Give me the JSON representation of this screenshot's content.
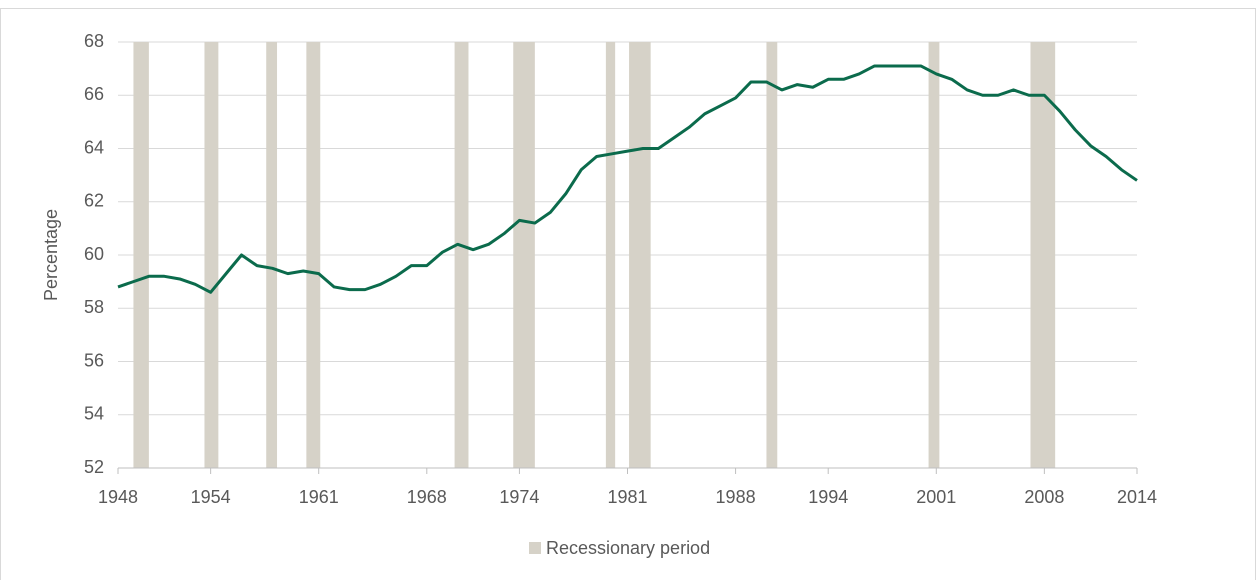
{
  "chart_data": {
    "type": "line",
    "y_label": "Percentage",
    "x": [
      1948,
      1949,
      1950,
      1951,
      1952,
      1953,
      1954,
      1955,
      1956,
      1957,
      1958,
      1959,
      1960,
      1961,
      1962,
      1963,
      1964,
      1965,
      1966,
      1967,
      1968,
      1969,
      1970,
      1971,
      1972,
      1973,
      1974,
      1975,
      1976,
      1977,
      1978,
      1979,
      1980,
      1981,
      1982,
      1983,
      1984,
      1985,
      1986,
      1987,
      1988,
      1989,
      1990,
      1991,
      1992,
      1993,
      1994,
      1995,
      1996,
      1997,
      1998,
      1999,
      2000,
      2001,
      2002,
      2003,
      2004,
      2005,
      2006,
      2007,
      2008,
      2009,
      2010,
      2011,
      2012,
      2013,
      2014
    ],
    "values": [
      58.8,
      59.0,
      59.2,
      59.2,
      59.1,
      58.9,
      58.6,
      59.3,
      60.0,
      59.6,
      59.5,
      59.3,
      59.4,
      59.3,
      58.8,
      58.7,
      58.7,
      58.9,
      59.2,
      59.6,
      59.6,
      60.1,
      60.4,
      60.2,
      60.4,
      60.8,
      61.3,
      61.2,
      61.6,
      62.3,
      63.2,
      63.7,
      63.8,
      63.9,
      64.0,
      64.0,
      64.4,
      64.8,
      65.3,
      65.6,
      65.9,
      66.5,
      66.5,
      66.2,
      66.4,
      66.3,
      66.6,
      66.6,
      66.8,
      67.1,
      67.1,
      67.1,
      67.1,
      66.8,
      66.6,
      66.2,
      66.0,
      66.0,
      66.2,
      66.0,
      66.0,
      65.4,
      64.7,
      64.1,
      63.7,
      63.2,
      62.8
    ],
    "color": "#0b6b4c",
    "xlim": [
      1948,
      2014
    ],
    "xticks": [
      1948,
      1954,
      1961,
      1968,
      1974,
      1981,
      1988,
      1994,
      2001,
      2008,
      2014
    ],
    "ylim": [
      52,
      68
    ],
    "yticks": [
      52,
      54,
      56,
      58,
      60,
      62,
      64,
      66,
      68
    ],
    "grid": true,
    "bands": {
      "name": "Recessionary period",
      "color": "#d6d2c8",
      "ranges": [
        [
          1949.0,
          1950.0
        ],
        [
          1953.6,
          1954.5
        ],
        [
          1957.6,
          1958.3
        ],
        [
          1960.2,
          1961.1
        ],
        [
          1969.8,
          1970.7
        ],
        [
          1973.6,
          1975.0
        ],
        [
          1979.6,
          1980.2
        ],
        [
          1981.1,
          1982.5
        ],
        [
          1990.0,
          1990.7
        ],
        [
          2000.5,
          2001.2
        ],
        [
          2007.1,
          2008.7
        ]
      ]
    },
    "legend": "bottom"
  }
}
